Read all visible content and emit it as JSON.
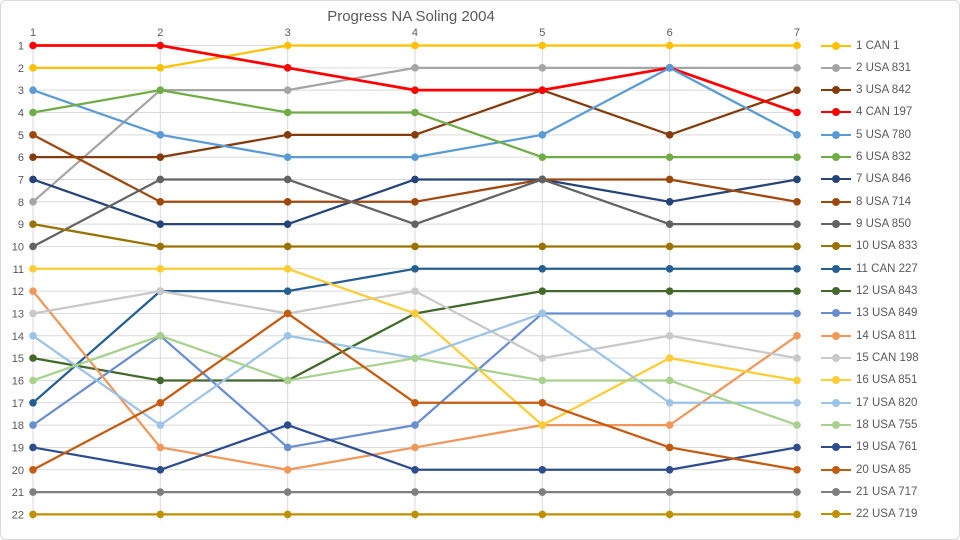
{
  "chart_data": {
    "type": "line",
    "title": "Progress NA Soling 2004",
    "xlabel": "",
    "ylabel": "",
    "x_axis": {
      "position": "top",
      "ticks": [
        "1",
        "2",
        "3",
        "4",
        "5",
        "6",
        "7"
      ]
    },
    "y_axis": {
      "reversed": true,
      "ticks": [
        "1",
        "2",
        "3",
        "4",
        "5",
        "6",
        "7",
        "8",
        "9",
        "10",
        "11",
        "12",
        "13",
        "14",
        "15",
        "16",
        "17",
        "18",
        "19",
        "20",
        "21",
        "22"
      ],
      "range": [
        1,
        22
      ]
    },
    "grid": true,
    "legend_position": "right",
    "categories": [
      1,
      2,
      3,
      4,
      5,
      6,
      7
    ],
    "series": [
      {
        "name": "1 CAN 1",
        "color": "#FFC000",
        "values": [
          2,
          2,
          1,
          1,
          1,
          1,
          1
        ]
      },
      {
        "name": "2 USA 831",
        "color": "#A5A5A5",
        "values": [
          8,
          3,
          3,
          2,
          2,
          2,
          2
        ]
      },
      {
        "name": "3 USA 842",
        "color": "#843C0C",
        "values": [
          6,
          6,
          5,
          5,
          3,
          5,
          3
        ]
      },
      {
        "name": "4 CAN 197",
        "color": "#FF0000",
        "values": [
          1,
          1,
          2,
          3,
          3,
          2,
          4
        ]
      },
      {
        "name": "5 USA 780",
        "color": "#5B9BD5",
        "values": [
          3,
          5,
          6,
          6,
          5,
          2,
          5
        ]
      },
      {
        "name": "6 USA 832",
        "color": "#70AD47",
        "values": [
          4,
          3,
          4,
          4,
          6,
          6,
          6
        ]
      },
      {
        "name": "7 USA 846",
        "color": "#264478",
        "values": [
          7,
          9,
          9,
          7,
          7,
          8,
          7
        ]
      },
      {
        "name": "8 USA 714",
        "color": "#9E480E",
        "values": [
          5,
          8,
          8,
          8,
          7,
          7,
          8
        ]
      },
      {
        "name": "9 USA 850",
        "color": "#636363",
        "values": [
          10,
          7,
          7,
          9,
          7,
          9,
          9
        ]
      },
      {
        "name": "10 USA 833",
        "color": "#997300",
        "values": [
          9,
          10,
          10,
          10,
          10,
          10,
          10
        ]
      },
      {
        "name": "11 CAN 227",
        "color": "#255E91",
        "values": [
          17,
          12,
          12,
          11,
          11,
          11,
          11
        ]
      },
      {
        "name": "12 USA 843",
        "color": "#43682B",
        "values": [
          15,
          16,
          16,
          13,
          12,
          12,
          12
        ]
      },
      {
        "name": "13 USA 849",
        "color": "#698ED0",
        "values": [
          18,
          14,
          19,
          18,
          13,
          13,
          13
        ]
      },
      {
        "name": "14 USA 811",
        "color": "#F1975A",
        "values": [
          12,
          19,
          20,
          19,
          18,
          18,
          14
        ]
      },
      {
        "name": "15 CAN 198",
        "color": "#C9C9C9",
        "values": [
          13,
          12,
          13,
          12,
          15,
          14,
          15
        ]
      },
      {
        "name": "16 USA 851",
        "color": "#FFCD33",
        "values": [
          11,
          11,
          11,
          13,
          18,
          15,
          16
        ]
      },
      {
        "name": "17 USA 820",
        "color": "#9DC3E6",
        "values": [
          14,
          18,
          14,
          15,
          13,
          17,
          17
        ]
      },
      {
        "name": "18 USA 755",
        "color": "#A9D18E",
        "values": [
          16,
          14,
          16,
          15,
          16,
          16,
          18
        ]
      },
      {
        "name": "19 USA 761",
        "color": "#2D4D8E",
        "values": [
          19,
          20,
          18,
          20,
          20,
          20,
          19
        ]
      },
      {
        "name": "20 USA 85",
        "color": "#C55A11",
        "values": [
          20,
          17,
          13,
          17,
          17,
          19,
          20
        ]
      },
      {
        "name": "21 USA 717",
        "color": "#7F7F7F",
        "values": [
          21,
          21,
          21,
          21,
          21,
          21,
          21
        ]
      },
      {
        "name": "22 USA 719",
        "color": "#BF9000",
        "values": [
          22,
          22,
          22,
          22,
          22,
          22,
          22
        ]
      }
    ]
  },
  "styles": {
    "title_color": "#595959",
    "axis_label_color": "#595959",
    "grid_color": "#D9D9D9",
    "background": "#FFFFFF",
    "border_color": "#D9D9D9"
  }
}
